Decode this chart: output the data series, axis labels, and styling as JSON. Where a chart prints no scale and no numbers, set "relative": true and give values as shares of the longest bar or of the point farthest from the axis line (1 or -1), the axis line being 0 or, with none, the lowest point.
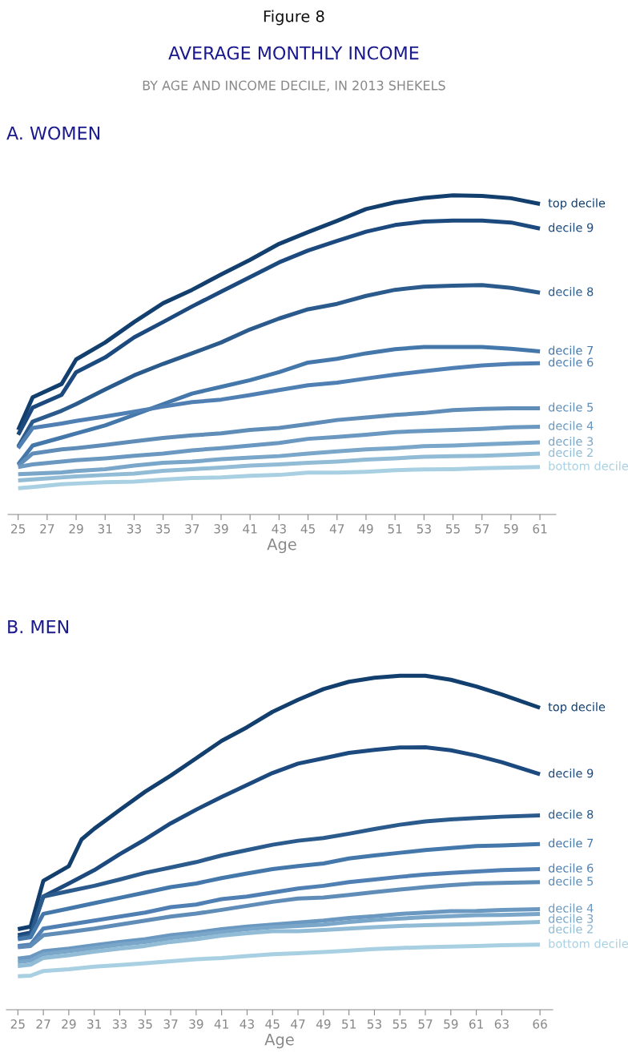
{
  "chart_data": [
    {
      "type": "line",
      "title": "A. WOMEN",
      "xlabel": "Age",
      "relative": true,
      "annotations": [
        "Figure 8",
        "AVERAGE MONTHLY INCOME",
        "BY AGE AND INCOME DECILE, IN 2013 SHEKELS"
      ],
      "x": [
        25,
        26,
        28,
        29,
        31,
        33,
        35,
        37,
        39,
        41,
        43,
        45,
        47,
        49,
        51,
        53,
        55,
        57,
        59,
        61
      ],
      "xlim": [
        24.3,
        62.1
      ],
      "xticks": [
        25,
        27,
        29,
        31,
        33,
        35,
        37,
        39,
        41,
        43,
        45,
        47,
        49,
        51,
        53,
        55,
        57,
        59,
        61
      ],
      "series": [
        {
          "name": "top decile",
          "color": "#123f6e",
          "values": [
            0.265,
            0.367,
            0.409,
            0.486,
            0.539,
            0.603,
            0.662,
            0.704,
            0.752,
            0.798,
            0.848,
            0.885,
            0.92,
            0.957,
            0.978,
            0.992,
            1.0,
            0.998,
            0.991,
            0.973
          ]
        },
        {
          "name": "decile 9",
          "color": "#1d4a7e",
          "values": [
            0.25,
            0.335,
            0.375,
            0.446,
            0.492,
            0.555,
            0.603,
            0.652,
            0.698,
            0.744,
            0.79,
            0.827,
            0.857,
            0.886,
            0.907,
            0.918,
            0.921,
            0.921,
            0.915,
            0.896
          ]
        },
        {
          "name": "decile 8",
          "color": "#2b5b8c",
          "values": [
            0.212,
            0.291,
            0.325,
            0.346,
            0.392,
            0.436,
            0.472,
            0.505,
            0.539,
            0.58,
            0.614,
            0.643,
            0.66,
            0.685,
            0.704,
            0.714,
            0.717,
            0.719,
            0.71,
            0.695
          ]
        },
        {
          "name": "decile 7",
          "color": "#4477aa",
          "values": [
            0.157,
            0.216,
            0.241,
            0.254,
            0.279,
            0.312,
            0.346,
            0.379,
            0.4,
            0.421,
            0.446,
            0.476,
            0.488,
            0.505,
            0.518,
            0.525,
            0.525,
            0.525,
            0.519,
            0.511
          ]
        },
        {
          "name": "decile 6",
          "color": "#5080b3",
          "values": [
            0.208,
            0.271,
            0.285,
            0.293,
            0.307,
            0.322,
            0.338,
            0.352,
            0.36,
            0.374,
            0.39,
            0.405,
            0.413,
            0.426,
            0.438,
            0.449,
            0.459,
            0.467,
            0.472,
            0.474
          ]
        },
        {
          "name": "decile 5",
          "color": "#5f8db8",
          "values": [
            0.153,
            0.191,
            0.204,
            0.208,
            0.218,
            0.229,
            0.24,
            0.248,
            0.254,
            0.265,
            0.271,
            0.283,
            0.296,
            0.304,
            0.312,
            0.318,
            0.327,
            0.331,
            0.333,
            0.333
          ]
        },
        {
          "name": "decile 4",
          "color": "#6a98c0",
          "values": [
            0.149,
            0.157,
            0.166,
            0.17,
            0.176,
            0.184,
            0.191,
            0.201,
            0.208,
            0.216,
            0.224,
            0.237,
            0.243,
            0.25,
            0.258,
            0.262,
            0.265,
            0.268,
            0.273,
            0.275
          ]
        },
        {
          "name": "decile 3",
          "color": "#7aa6c9",
          "values": [
            0.126,
            0.128,
            0.132,
            0.136,
            0.142,
            0.153,
            0.162,
            0.166,
            0.173,
            0.178,
            0.183,
            0.191,
            0.198,
            0.204,
            0.208,
            0.214,
            0.216,
            0.22,
            0.223,
            0.226
          ]
        },
        {
          "name": "decile 2",
          "color": "#92bcd6",
          "values": [
            0.107,
            0.11,
            0.116,
            0.119,
            0.124,
            0.128,
            0.137,
            0.142,
            0.147,
            0.153,
            0.157,
            0.162,
            0.166,
            0.172,
            0.176,
            0.181,
            0.183,
            0.184,
            0.187,
            0.191
          ]
        },
        {
          "name": "bottom decile",
          "color": "#a8d0e2",
          "values": [
            0.082,
            0.086,
            0.095,
            0.097,
            0.101,
            0.103,
            0.109,
            0.114,
            0.116,
            0.121,
            0.124,
            0.131,
            0.131,
            0.134,
            0.139,
            0.141,
            0.142,
            0.145,
            0.147,
            0.149
          ]
        }
      ]
    },
    {
      "type": "line",
      "title": "B. MEN",
      "xlabel": "Age",
      "relative": true,
      "x": [
        25,
        26,
        27,
        29,
        31,
        33,
        35,
        37,
        39,
        41,
        43,
        45,
        47,
        49,
        51,
        53,
        55,
        57,
        59,
        61,
        63,
        66
      ],
      "xlim": [
        24.1,
        67.0
      ],
      "xticks": [
        25,
        27,
        29,
        31,
        33,
        35,
        37,
        39,
        41,
        43,
        45,
        47,
        49,
        51,
        53,
        55,
        57,
        59,
        61,
        63,
        66
      ],
      "series": [
        {
          "name": "top decile",
          "color": "#123f6e",
          "x": [
            25,
            26,
            27,
            29,
            30,
            31,
            33,
            35,
            37,
            39,
            41,
            43,
            45,
            47,
            49,
            51,
            53,
            55,
            57,
            59,
            61,
            63,
            66
          ],
          "values": [
            0.241,
            0.249,
            0.386,
            0.43,
            0.51,
            0.542,
            0.598,
            0.653,
            0.701,
            0.753,
            0.805,
            0.846,
            0.892,
            0.928,
            0.96,
            0.982,
            0.994,
            1.0,
            1.0,
            0.988,
            0.968,
            0.944,
            0.904
          ]
        },
        {
          "name": "decile 9",
          "color": "#1d4a7e",
          "values": [
            0.223,
            0.231,
            0.339,
            0.378,
            0.418,
            0.466,
            0.51,
            0.558,
            0.599,
            0.637,
            0.673,
            0.709,
            0.737,
            0.753,
            0.769,
            0.778,
            0.785,
            0.786,
            0.777,
            0.761,
            0.741,
            0.705
          ]
        },
        {
          "name": "decile 8",
          "color": "#2b5b8c",
          "values": [
            0.215,
            0.223,
            0.339,
            0.355,
            0.371,
            0.39,
            0.41,
            0.426,
            0.442,
            0.462,
            0.478,
            0.494,
            0.506,
            0.514,
            0.527,
            0.541,
            0.554,
            0.564,
            0.57,
            0.574,
            0.578,
            0.582
          ]
        },
        {
          "name": "decile 7",
          "color": "#4477aa",
          "values": [
            0.211,
            0.217,
            0.287,
            0.303,
            0.319,
            0.335,
            0.351,
            0.367,
            0.378,
            0.394,
            0.408,
            0.421,
            0.43,
            0.438,
            0.453,
            0.462,
            0.47,
            0.478,
            0.484,
            0.49,
            0.492,
            0.496
          ]
        },
        {
          "name": "decile 6",
          "color": "#5080b3",
          "values": [
            0.191,
            0.195,
            0.243,
            0.255,
            0.267,
            0.279,
            0.291,
            0.307,
            0.315,
            0.331,
            0.339,
            0.351,
            0.363,
            0.371,
            0.382,
            0.39,
            0.398,
            0.405,
            0.41,
            0.414,
            0.418,
            0.421
          ]
        },
        {
          "name": "decile 5",
          "color": "#5f8db8",
          "values": [
            0.187,
            0.191,
            0.223,
            0.233,
            0.243,
            0.255,
            0.267,
            0.279,
            0.288,
            0.299,
            0.311,
            0.323,
            0.333,
            0.336,
            0.344,
            0.352,
            0.36,
            0.367,
            0.373,
            0.378,
            0.38,
            0.382
          ]
        },
        {
          "name": "decile 4",
          "color": "#6a98c0",
          "values": [
            0.153,
            0.158,
            0.175,
            0.183,
            0.193,
            0.203,
            0.211,
            0.223,
            0.231,
            0.241,
            0.249,
            0.255,
            0.261,
            0.267,
            0.275,
            0.28,
            0.287,
            0.291,
            0.295,
            0.296,
            0.299,
            0.301
          ]
        },
        {
          "name": "decile 3",
          "color": "#7aa6c9",
          "values": [
            0.143,
            0.147,
            0.166,
            0.175,
            0.185,
            0.195,
            0.203,
            0.214,
            0.223,
            0.233,
            0.241,
            0.247,
            0.251,
            0.255,
            0.263,
            0.269,
            0.273,
            0.277,
            0.28,
            0.283,
            0.284,
            0.287
          ]
        },
        {
          "name": "decile 2",
          "color": "#92bcd6",
          "values": [
            0.131,
            0.135,
            0.155,
            0.163,
            0.174,
            0.183,
            0.191,
            0.203,
            0.211,
            0.222,
            0.229,
            0.235,
            0.235,
            0.239,
            0.243,
            0.247,
            0.251,
            0.253,
            0.255,
            0.257,
            0.259,
            0.263
          ]
        },
        {
          "name": "bottom decile",
          "color": "#a8d0e2",
          "values": [
            0.1,
            0.102,
            0.116,
            0.121,
            0.129,
            0.134,
            0.139,
            0.145,
            0.151,
            0.155,
            0.161,
            0.166,
            0.169,
            0.173,
            0.177,
            0.182,
            0.185,
            0.187,
            0.189,
            0.191,
            0.193,
            0.195
          ]
        }
      ]
    }
  ]
}
